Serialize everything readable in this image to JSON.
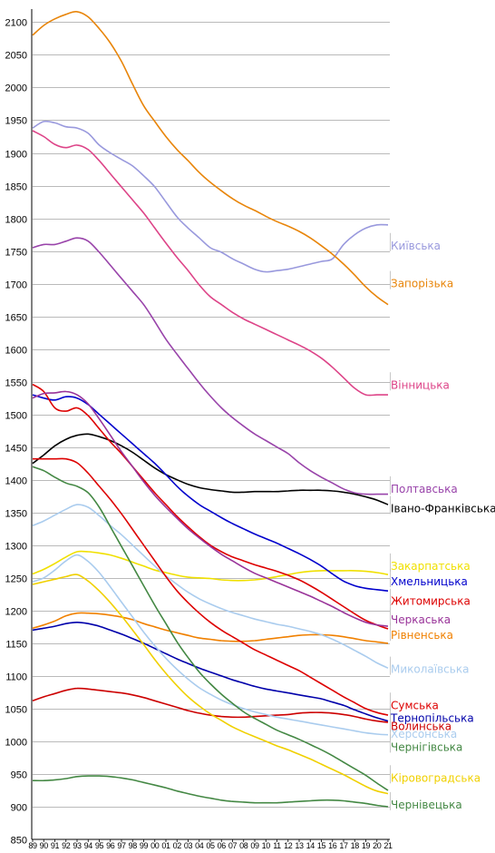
{
  "chart_data": {
    "type": "line",
    "x": [
      "89",
      "90",
      "91",
      "92",
      "93",
      "94",
      "95",
      "96",
      "97",
      "98",
      "99",
      "00",
      "01",
      "02",
      "03",
      "04",
      "05",
      "06",
      "07",
      "08",
      "09",
      "10",
      "11",
      "12",
      "13",
      "14",
      "15",
      "16",
      "17",
      "18",
      "19",
      "20",
      "21"
    ],
    "ylim": [
      850,
      2120
    ],
    "yticks": [
      850,
      900,
      950,
      1000,
      1050,
      1100,
      1150,
      1200,
      1250,
      1300,
      1350,
      1400,
      1450,
      1500,
      1550,
      1600,
      1650,
      1700,
      1750,
      1800,
      1850,
      1900,
      1950,
      2000,
      2050,
      2100
    ],
    "grid": true,
    "legend": "labels at right end of each line",
    "series": [
      {
        "name": "Київська",
        "color": "#9999dd",
        "values": [
          1938,
          1948,
          1946,
          1940,
          1938,
          1930,
          1912,
          1900,
          1890,
          1880,
          1865,
          1848,
          1825,
          1802,
          1785,
          1770,
          1755,
          1748,
          1738,
          1730,
          1722,
          1718,
          1720,
          1722,
          1726,
          1730,
          1734,
          1738,
          1760,
          1775,
          1785,
          1790,
          1790
        ]
      },
      {
        "name": "Запорізька",
        "color": "#e8850a",
        "values": [
          2080,
          2095,
          2105,
          2112,
          2116,
          2108,
          2090,
          2068,
          2040,
          2005,
          1972,
          1948,
          1925,
          1905,
          1888,
          1870,
          1855,
          1842,
          1830,
          1820,
          1812,
          1803,
          1795,
          1788,
          1780,
          1770,
          1758,
          1745,
          1730,
          1713,
          1695,
          1680,
          1668
        ]
      },
      {
        "name": "Вінницька",
        "color": "#dd4488",
        "values": [
          1934,
          1925,
          1913,
          1908,
          1912,
          1905,
          1888,
          1868,
          1848,
          1828,
          1808,
          1785,
          1762,
          1740,
          1720,
          1698,
          1680,
          1668,
          1656,
          1646,
          1638,
          1630,
          1622,
          1614,
          1606,
          1597,
          1586,
          1572,
          1556,
          1540,
          1530,
          1530,
          1530
        ]
      },
      {
        "name": "Полтавська",
        "color": "#9944aa",
        "values": [
          1755,
          1760,
          1760,
          1765,
          1770,
          1765,
          1748,
          1728,
          1708,
          1688,
          1668,
          1642,
          1615,
          1592,
          1570,
          1548,
          1528,
          1510,
          1495,
          1482,
          1470,
          1460,
          1450,
          1440,
          1426,
          1414,
          1404,
          1395,
          1386,
          1380,
          1378,
          1378,
          1378
        ]
      },
      {
        "name": "Івано-Франківська",
        "color": "#000000",
        "values": [
          1425,
          1438,
          1452,
          1462,
          1468,
          1470,
          1466,
          1460,
          1452,
          1442,
          1430,
          1418,
          1408,
          1400,
          1393,
          1388,
          1385,
          1383,
          1381,
          1381,
          1382,
          1382,
          1382,
          1383,
          1384,
          1384,
          1384,
          1383,
          1381,
          1378,
          1374,
          1369,
          1362
        ]
      },
      {
        "name": "Закарпатська",
        "color": "#f0e000",
        "values": [
          1256,
          1263,
          1272,
          1282,
          1290,
          1290,
          1288,
          1285,
          1280,
          1274,
          1268,
          1262,
          1258,
          1254,
          1251,
          1250,
          1249,
          1247,
          1246,
          1246,
          1247,
          1249,
          1252,
          1255,
          1258,
          1260,
          1261,
          1261,
          1261,
          1261,
          1260,
          1258,
          1255
        ]
      },
      {
        "name": "Хмельницька",
        "color": "#0000cc",
        "values": [
          1530,
          1525,
          1522,
          1527,
          1525,
          1515,
          1500,
          1485,
          1470,
          1455,
          1440,
          1425,
          1408,
          1390,
          1375,
          1362,
          1352,
          1342,
          1333,
          1325,
          1317,
          1310,
          1303,
          1295,
          1287,
          1278,
          1268,
          1256,
          1245,
          1238,
          1234,
          1232,
          1230
        ]
      },
      {
        "name": "Житомирська",
        "color": "#dd0000",
        "values": [
          1546,
          1535,
          1510,
          1505,
          1510,
          1498,
          1478,
          1458,
          1440,
          1420,
          1400,
          1380,
          1362,
          1344,
          1328,
          1313,
          1300,
          1290,
          1282,
          1276,
          1270,
          1265,
          1260,
          1254,
          1247,
          1238,
          1228,
          1217,
          1206,
          1195,
          1185,
          1178,
          1172
        ]
      },
      {
        "name": "Черкаська",
        "color": "#993399",
        "values": [
          1525,
          1532,
          1533,
          1535,
          1530,
          1516,
          1493,
          1468,
          1443,
          1420,
          1397,
          1376,
          1358,
          1341,
          1325,
          1311,
          1298,
          1286,
          1276,
          1266,
          1257,
          1250,
          1243,
          1236,
          1229,
          1222,
          1214,
          1206,
          1197,
          1189,
          1182,
          1178,
          1176
        ]
      },
      {
        "name": "Рівненська",
        "color": "#f08000",
        "values": [
          1173,
          1178,
          1184,
          1192,
          1196,
          1196,
          1195,
          1193,
          1190,
          1186,
          1180,
          1175,
          1170,
          1166,
          1162,
          1158,
          1156,
          1154,
          1153,
          1153,
          1154,
          1156,
          1158,
          1160,
          1162,
          1163,
          1163,
          1162,
          1160,
          1157,
          1154,
          1152,
          1150
        ]
      },
      {
        "name": "Миколаївська",
        "color": "#aaccee",
        "values": [
          1330,
          1337,
          1346,
          1355,
          1362,
          1358,
          1345,
          1330,
          1316,
          1300,
          1284,
          1268,
          1253,
          1240,
          1228,
          1218,
          1210,
          1203,
          1197,
          1192,
          1187,
          1183,
          1179,
          1176,
          1172,
          1168,
          1163,
          1156,
          1148,
          1139,
          1130,
          1120,
          1112
        ]
      },
      {
        "name": "Сумська",
        "color": "#dd0000",
        "values": [
          1432,
          1432,
          1432,
          1432,
          1426,
          1410,
          1390,
          1370,
          1348,
          1324,
          1300,
          1276,
          1252,
          1230,
          1212,
          1196,
          1182,
          1170,
          1160,
          1150,
          1140,
          1132,
          1124,
          1116,
          1108,
          1098,
          1088,
          1078,
          1068,
          1059,
          1050,
          1044,
          1040
        ]
      },
      {
        "name": "Тернопільська",
        "color": "#0000aa",
        "values": [
          1170,
          1173,
          1176,
          1180,
          1182,
          1180,
          1176,
          1170,
          1164,
          1157,
          1150,
          1142,
          1134,
          1126,
          1119,
          1112,
          1106,
          1100,
          1094,
          1089,
          1084,
          1080,
          1077,
          1074,
          1071,
          1068,
          1065,
          1060,
          1055,
          1048,
          1042,
          1036,
          1031
        ]
      },
      {
        "name": "Волинська",
        "color": "#cc0000",
        "values": [
          1062,
          1068,
          1073,
          1078,
          1081,
          1080,
          1078,
          1076,
          1074,
          1071,
          1067,
          1062,
          1057,
          1052,
          1047,
          1043,
          1040,
          1038,
          1037,
          1037,
          1038,
          1039,
          1040,
          1041,
          1043,
          1044,
          1044,
          1043,
          1041,
          1038,
          1034,
          1031,
          1029
        ]
      },
      {
        "name": "Херсонська",
        "color": "#aaccee",
        "values": [
          1244,
          1250,
          1262,
          1276,
          1285,
          1275,
          1258,
          1236,
          1213,
          1190,
          1167,
          1146,
          1127,
          1110,
          1095,
          1082,
          1072,
          1063,
          1056,
          1050,
          1045,
          1041,
          1037,
          1034,
          1031,
          1028,
          1025,
          1022,
          1019,
          1016,
          1013,
          1011,
          1010
        ]
      },
      {
        "name": "Чернігівська",
        "color": "#448844",
        "values": [
          1420,
          1414,
          1404,
          1395,
          1390,
          1380,
          1358,
          1328,
          1298,
          1268,
          1238,
          1208,
          1180,
          1152,
          1128,
          1106,
          1088,
          1072,
          1058,
          1045,
          1035,
          1026,
          1017,
          1010,
          1003,
          995,
          987,
          978,
          968,
          958,
          948,
          936,
          925
        ]
      },
      {
        "name": "Кіровоградська",
        "color": "#f0d000",
        "values": [
          1240,
          1244,
          1248,
          1252,
          1255,
          1245,
          1230,
          1212,
          1192,
          1170,
          1148,
          1125,
          1104,
          1085,
          1068,
          1054,
          1042,
          1032,
          1022,
          1014,
          1007,
          1000,
          993,
          987,
          980,
          973,
          965,
          957,
          949,
          940,
          931,
          924,
          920
        ]
      },
      {
        "name": "Чернівецька",
        "color": "#448844",
        "values": [
          940,
          940,
          941,
          943,
          946,
          947,
          947,
          946,
          944,
          941,
          937,
          933,
          929,
          924,
          920,
          916,
          913,
          910,
          908,
          907,
          906,
          906,
          906,
          907,
          908,
          909,
          910,
          910,
          909,
          907,
          905,
          902,
          900
        ]
      }
    ],
    "labels": [
      {
        "series": 0,
        "text": "Київська",
        "y": 1758
      },
      {
        "series": 1,
        "text": "Запорізька",
        "y": 1700
      },
      {
        "series": 2,
        "text": "Вінницька",
        "y": 1545
      },
      {
        "series": 3,
        "text": "Полтавська",
        "y": 1386
      },
      {
        "series": 4,
        "text": "Івано-Франківська",
        "y": 1356
      },
      {
        "series": 5,
        "text": "Закарпатська",
        "y": 1268
      },
      {
        "series": 6,
        "text": "Хмельницька",
        "y": 1244
      },
      {
        "series": 7,
        "text": "Житомирська",
        "y": 1214
      },
      {
        "series": 8,
        "text": "Черкаська",
        "y": 1186
      },
      {
        "series": 9,
        "text": "Рівненська",
        "y": 1162
      },
      {
        "series": 10,
        "text": "Миколаївська",
        "y": 1110
      },
      {
        "series": 11,
        "text": "Сумська",
        "y": 1055
      },
      {
        "series": 12,
        "text": "Тернопільська",
        "y": 1035
      },
      {
        "series": 13,
        "text": "Волинська",
        "y": 1023
      },
      {
        "series": 14,
        "text": "Херсонська",
        "y": 1011
      },
      {
        "series": 15,
        "text": "Чернігівська",
        "y": 991
      },
      {
        "series": 16,
        "text": "Кіровоградська",
        "y": 944
      },
      {
        "series": 17,
        "text": "Чернівецька",
        "y": 903
      }
    ]
  }
}
